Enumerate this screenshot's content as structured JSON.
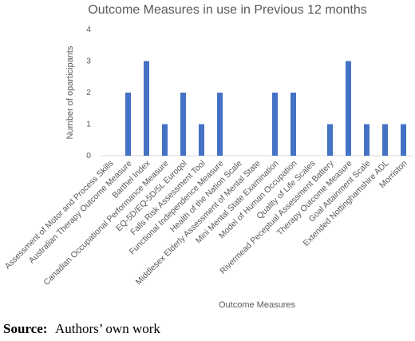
{
  "chart_data": {
    "type": "bar",
    "title": "Outcome Measures in use in Previous 12 months",
    "x_label": "Outcome Measures",
    "y_label": "Number of oparticipants",
    "categories": [
      "Assessment of Motor and Process Skills",
      "Australian Therapy Outcome Measure",
      "Barthel Index",
      "Canadian Occupational Performance Measure",
      "EQ-5D/EQ-5D/5L Euroqol",
      "Falls Risk Assessment Tool",
      "Functional Independence Measure",
      "Health of the Nation Scale",
      "Middlesex Elderly Assessment of Mental State",
      "Mini Mental State Examination",
      "Model of Human Occupation",
      "Quality of Life Scales",
      "Rivermead Peceptual Assessment Battery",
      "Therapy Outcome Measure",
      "Goal Attainment Scale",
      "Extended Nottinghamshire ADL",
      "Morriston"
    ],
    "values": [
      0,
      2,
      3,
      1,
      2,
      1,
      2,
      0,
      0,
      2,
      2,
      0,
      1,
      3,
      1,
      1,
      1
    ],
    "color": "#4472c4",
    "ylim": [
      0,
      4
    ],
    "yticks": [
      0,
      1,
      2,
      3,
      4
    ],
    "grid": false
  },
  "source": {
    "label": "Source:",
    "text": "Authors’ own work"
  }
}
